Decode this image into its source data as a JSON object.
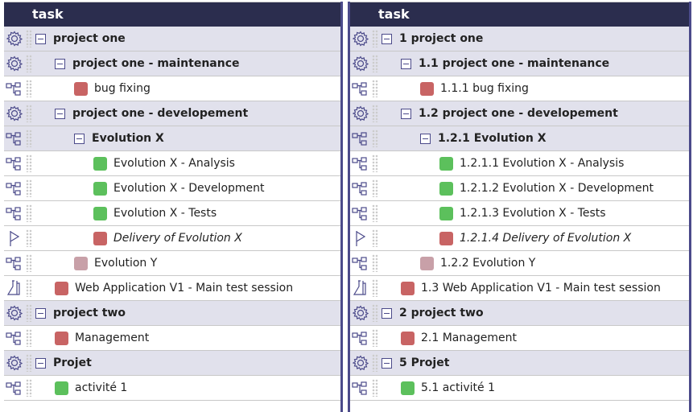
{
  "colors": {
    "header": "#2b2d4e",
    "group_bg": "#e1e1ec",
    "red": "#c86464",
    "green": "#5cc05c",
    "pink": "#c8a0a8",
    "accent": "#4b4a8a"
  },
  "left": {
    "header": "task",
    "rows": [
      {
        "label": "project one",
        "icon": "gear-icon",
        "depth": 0,
        "group": true
      },
      {
        "label": "project one - maintenance",
        "icon": "gear-icon",
        "depth": 1,
        "group": true
      },
      {
        "label": "bug fixing",
        "icon": "hierarchy-icon",
        "depth": 2,
        "color": "red"
      },
      {
        "label": "project one - developement",
        "icon": "gear-icon",
        "depth": 1,
        "group": true
      },
      {
        "label": "Evolution X",
        "icon": "hierarchy-icon",
        "depth": 2,
        "group": true
      },
      {
        "label": "Evolution X - Analysis",
        "icon": "hierarchy-icon",
        "depth": 3,
        "color": "green"
      },
      {
        "label": "Evolution X - Development",
        "icon": "hierarchy-icon",
        "depth": 3,
        "color": "green"
      },
      {
        "label": "Evolution X - Tests",
        "icon": "hierarchy-icon",
        "depth": 3,
        "color": "green"
      },
      {
        "label": "Delivery of Evolution X",
        "icon": "flag-icon",
        "depth": 3,
        "color": "red",
        "italic": true
      },
      {
        "label": "Evolution Y",
        "icon": "hierarchy-icon",
        "depth": 2,
        "color": "pink"
      },
      {
        "label": "Web Application V1 - Main test session",
        "icon": "flask-icon",
        "depth": 1,
        "color": "red"
      },
      {
        "label": "project two",
        "icon": "gear-icon",
        "depth": 0,
        "group": true
      },
      {
        "label": "Management",
        "icon": "hierarchy-icon",
        "depth": 1,
        "color": "red"
      },
      {
        "label": "Projet",
        "icon": "gear-icon",
        "depth": 0,
        "group": true
      },
      {
        "label": "activité 1",
        "icon": "hierarchy-icon",
        "depth": 1,
        "color": "green"
      }
    ]
  },
  "right": {
    "header": "task",
    "rows": [
      {
        "label": "1 project one",
        "icon": "gear-icon",
        "depth": 0,
        "group": true
      },
      {
        "label": "1.1 project one - maintenance",
        "icon": "gear-icon",
        "depth": 1,
        "group": true
      },
      {
        "label": "1.1.1 bug fixing",
        "icon": "hierarchy-icon",
        "depth": 2,
        "color": "red"
      },
      {
        "label": "1.2 project one - developement",
        "icon": "gear-icon",
        "depth": 1,
        "group": true
      },
      {
        "label": "1.2.1 Evolution X",
        "icon": "hierarchy-icon",
        "depth": 2,
        "group": true
      },
      {
        "label": "1.2.1.1 Evolution X - Analysis",
        "icon": "hierarchy-icon",
        "depth": 3,
        "color": "green"
      },
      {
        "label": "1.2.1.2 Evolution X - Development",
        "icon": "hierarchy-icon",
        "depth": 3,
        "color": "green"
      },
      {
        "label": "1.2.1.3 Evolution X - Tests",
        "icon": "hierarchy-icon",
        "depth": 3,
        "color": "green"
      },
      {
        "label": "1.2.1.4 Delivery of Evolution X",
        "icon": "flag-icon",
        "depth": 3,
        "color": "red",
        "italic": true
      },
      {
        "label": "1.2.2 Evolution Y",
        "icon": "hierarchy-icon",
        "depth": 2,
        "color": "pink"
      },
      {
        "label": "1.3 Web Application V1 - Main test session",
        "icon": "flask-icon",
        "depth": 1,
        "color": "red"
      },
      {
        "label": "2 project two",
        "icon": "gear-icon",
        "depth": 0,
        "group": true
      },
      {
        "label": "2.1 Management",
        "icon": "hierarchy-icon",
        "depth": 1,
        "color": "red"
      },
      {
        "label": "5 Projet",
        "icon": "gear-icon",
        "depth": 0,
        "group": true
      },
      {
        "label": "5.1 activité 1",
        "icon": "hierarchy-icon",
        "depth": 1,
        "color": "green"
      }
    ]
  }
}
